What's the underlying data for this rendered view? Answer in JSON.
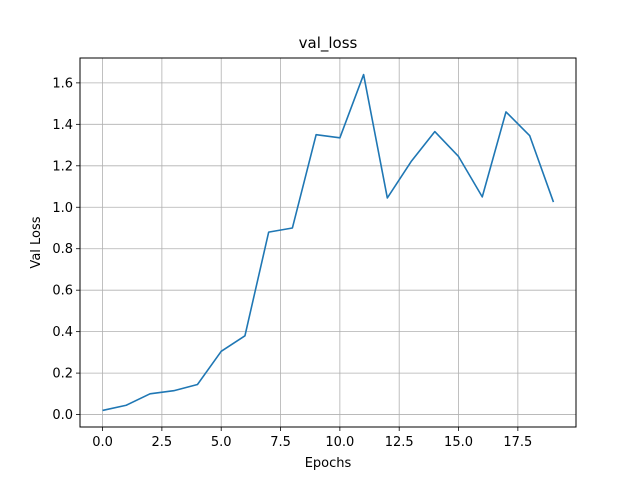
{
  "chart_data": {
    "type": "line",
    "title": "val_loss",
    "xlabel": "Epochs",
    "ylabel": "Val Loss",
    "xlim": [
      -0.95,
      19.95
    ],
    "ylim": [
      -0.06,
      1.72
    ],
    "grid": true,
    "x_ticks": [
      0.0,
      2.5,
      5.0,
      7.5,
      10.0,
      12.5,
      15.0,
      17.5
    ],
    "x_tick_labels": [
      "0.0",
      "2.5",
      "5.0",
      "7.5",
      "10.0",
      "12.5",
      "15.0",
      "17.5"
    ],
    "y_ticks": [
      0.0,
      0.2,
      0.4,
      0.6,
      0.8,
      1.0,
      1.2,
      1.4,
      1.6
    ],
    "y_tick_labels": [
      "0.0",
      "0.2",
      "0.4",
      "0.6",
      "0.8",
      "1.0",
      "1.2",
      "1.4",
      "1.6"
    ],
    "series": [
      {
        "color": "#1f77b4",
        "x": [
          0,
          1,
          2,
          3,
          4,
          5,
          6,
          7,
          8,
          9,
          10,
          11,
          12,
          13,
          14,
          15,
          16,
          17,
          18,
          19
        ],
        "values": [
          0.02,
          0.045,
          0.1,
          0.115,
          0.145,
          0.305,
          0.38,
          0.88,
          0.9,
          1.35,
          1.335,
          1.64,
          1.045,
          1.22,
          1.365,
          1.245,
          1.05,
          1.46,
          1.345,
          1.025
        ]
      }
    ]
  }
}
